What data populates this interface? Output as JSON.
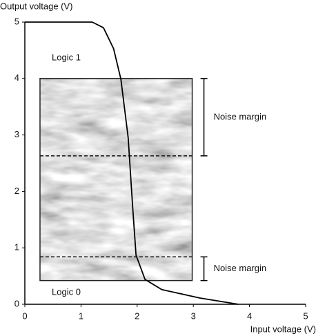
{
  "chart_data": {
    "type": "line",
    "x_label": "Input voltage (V)",
    "y_label": "Output voltage (V)",
    "x": [
      0,
      1.2,
      1.4,
      1.58,
      1.71,
      1.84,
      1.92,
      1.98,
      2.14,
      2.44,
      3.12,
      3.8
    ],
    "series": [
      {
        "color": "#000000",
        "values": [
          5,
          5,
          4.9,
          4.53,
          3.99,
          2.95,
          1.72,
          0.87,
          0.44,
          0.26,
          0.11,
          0
        ]
      }
    ],
    "xlim": [
      0,
      5
    ],
    "ylim": [
      0,
      5
    ],
    "xticks": [
      0,
      1,
      2,
      3,
      4,
      5
    ],
    "yticks": [
      0,
      1,
      2,
      3,
      4,
      5
    ],
    "shaded_region": {
      "x": [
        0.27,
        2.98
      ],
      "y": [
        0.42,
        4
      ]
    },
    "dashed_levels": [
      2.63,
      0.84
    ],
    "noise_margins": [
      {
        "label": "Noise margin",
        "range": [
          2.63,
          4
        ]
      },
      {
        "label": "Noise margin",
        "range": [
          0.42,
          0.84
        ]
      }
    ],
    "annotations": [
      "Logic 1",
      "Logic 0"
    ]
  }
}
